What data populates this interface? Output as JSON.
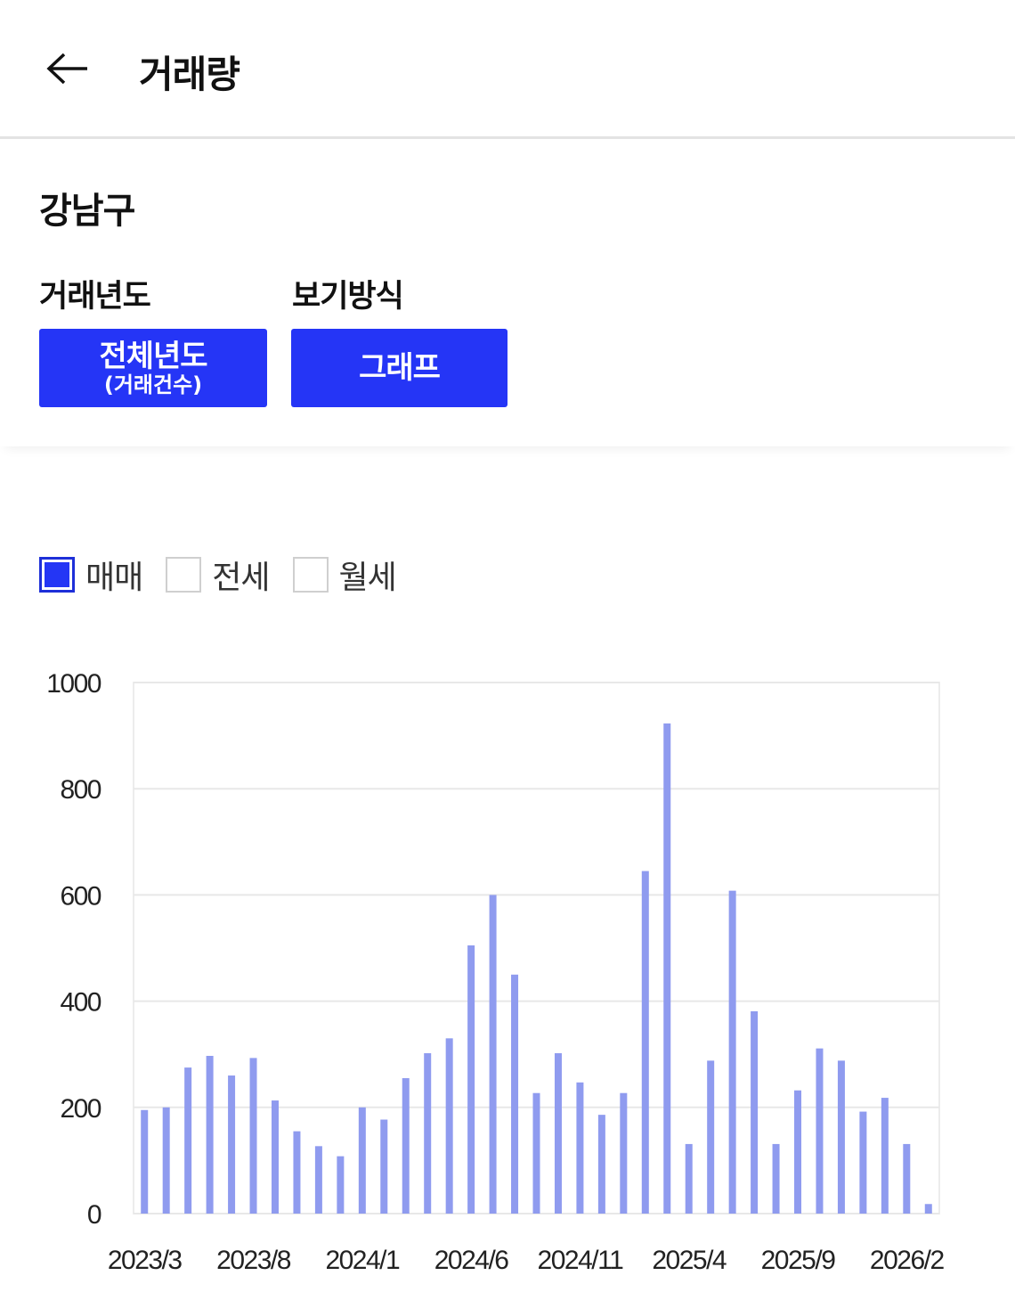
{
  "header": {
    "title": "거래량"
  },
  "filters": {
    "region": "강남구",
    "year_label": "거래년도",
    "view_label": "보기방식",
    "year_button": {
      "main": "전체년도",
      "sub": "(거래건수)"
    },
    "view_button": "그래프"
  },
  "legend": [
    {
      "label": "매매",
      "checked": true
    },
    {
      "label": "전세",
      "checked": false
    },
    {
      "label": "월세",
      "checked": false
    }
  ],
  "chart_data": {
    "type": "bar",
    "title": "",
    "xlabel": "",
    "ylabel": "",
    "ylim": [
      0,
      1000
    ],
    "yticks": [
      0,
      200,
      400,
      600,
      800,
      1000
    ],
    "grid": true,
    "bar_color": "#8f9bef",
    "categories": [
      "2023/3",
      "2023/4",
      "2023/5",
      "2023/6",
      "2023/7",
      "2023/8",
      "2023/9",
      "2023/10",
      "2023/11",
      "2023/12",
      "2024/1",
      "2024/2",
      "2024/3",
      "2024/4",
      "2024/5",
      "2024/6",
      "2024/7",
      "2024/8",
      "2024/9",
      "2024/10",
      "2024/11",
      "2024/12",
      "2025/1",
      "2025/2",
      "2025/3",
      "2025/4",
      "2025/5",
      "2025/6",
      "2025/7",
      "2025/8",
      "2025/9",
      "2025/10",
      "2025/11",
      "2025/12",
      "2026/1",
      "2026/2",
      "2026/3"
    ],
    "x_tick_labels": [
      "2023/3",
      "2023/8",
      "2024/1",
      "2024/6",
      "2024/11",
      "2025/4",
      "2025/9",
      "2026/2"
    ],
    "series": [
      {
        "values": [
          195,
          200,
          275,
          297,
          260,
          293,
          213,
          155,
          127,
          108,
          200,
          177,
          255,
          302,
          330,
          505,
          600,
          450,
          227,
          302,
          247,
          186,
          227,
          645,
          923,
          131,
          288,
          608,
          381,
          131,
          232,
          311,
          288,
          192,
          218,
          131,
          18
        ]
      }
    ]
  }
}
